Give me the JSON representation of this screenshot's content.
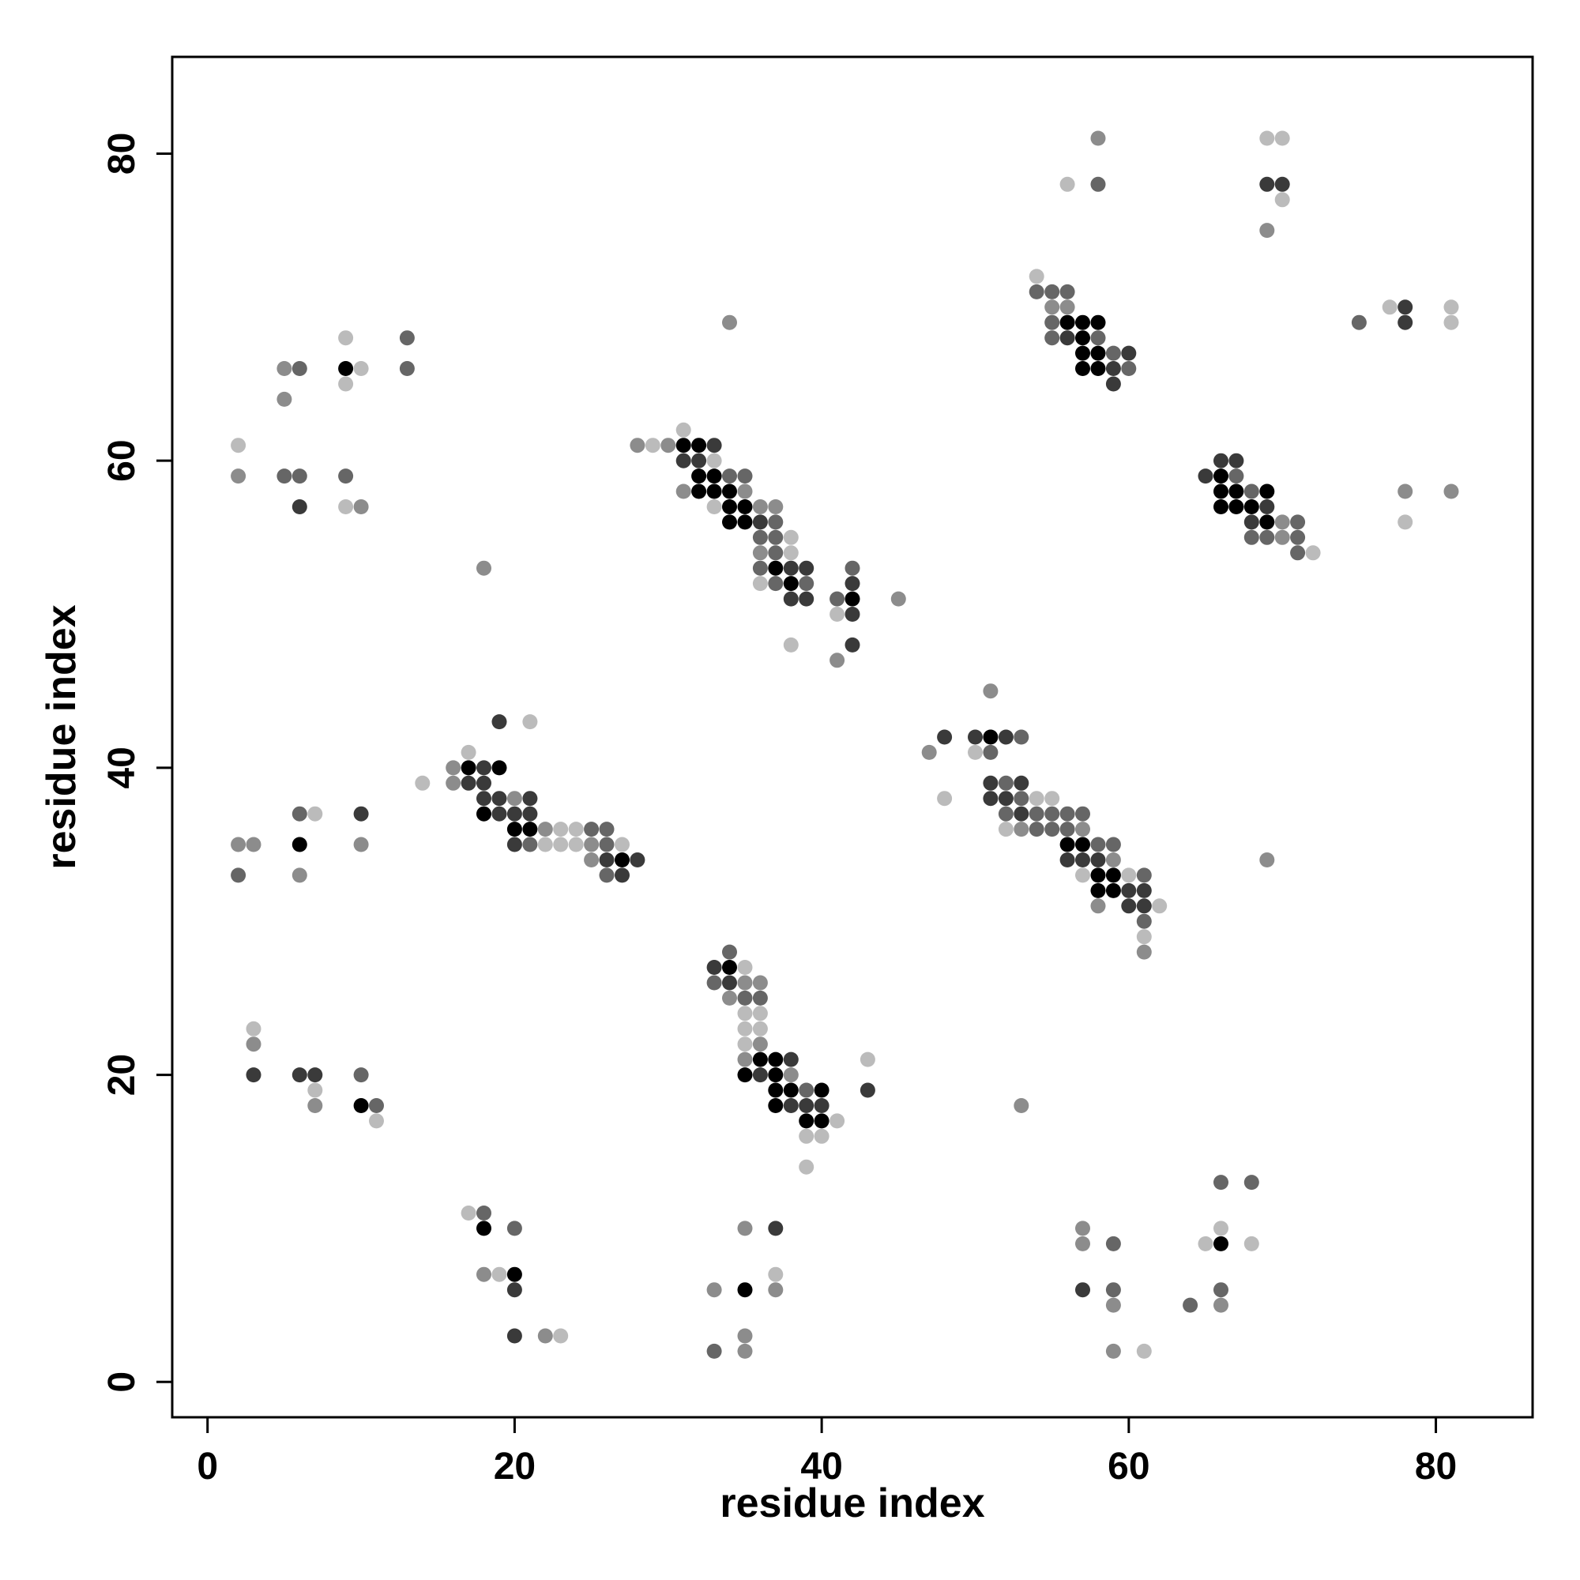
{
  "chart_data": {
    "type": "scatter",
    "title": "",
    "xlabel": "residue index",
    "ylabel": "residue index",
    "xlim": [
      -2.3,
      86.3
    ],
    "ylim": [
      -2.3,
      86.3
    ],
    "xticks": [
      0,
      20,
      40,
      60,
      80
    ],
    "yticks": [
      0,
      20,
      40,
      60,
      80
    ],
    "grid": false,
    "legend": "none",
    "shade_scale": {
      "1": "#bbbbbb",
      "2": "#8c8c8c",
      "3": "#666666",
      "4": "#3a3a3a",
      "5": "#000000"
    },
    "points": [
      [
        2,
        61,
        1
      ],
      [
        2,
        59,
        2
      ],
      [
        5,
        66,
        2
      ],
      [
        6,
        66,
        3
      ],
      [
        5,
        64,
        2
      ],
      [
        9,
        68,
        1
      ],
      [
        9,
        66,
        5
      ],
      [
        10,
        66,
        1
      ],
      [
        9,
        65,
        1
      ],
      [
        13,
        68,
        3
      ],
      [
        13,
        66,
        3
      ],
      [
        5,
        59,
        3
      ],
      [
        6,
        59,
        3
      ],
      [
        6,
        57,
        4
      ],
      [
        9,
        59,
        3
      ],
      [
        9,
        57,
        1
      ],
      [
        10,
        57,
        2
      ],
      [
        18,
        53,
        2
      ],
      [
        2,
        35,
        2
      ],
      [
        3,
        35,
        2
      ],
      [
        2,
        33,
        3
      ],
      [
        6,
        37,
        3
      ],
      [
        7,
        37,
        1
      ],
      [
        6,
        35,
        5
      ],
      [
        6,
        33,
        2
      ],
      [
        10,
        37,
        4
      ],
      [
        10,
        35,
        2
      ],
      [
        3,
        23,
        1
      ],
      [
        3,
        22,
        2
      ],
      [
        3,
        20,
        4
      ],
      [
        6,
        20,
        4
      ],
      [
        7,
        20,
        4
      ],
      [
        7,
        19,
        1
      ],
      [
        7,
        18,
        2
      ],
      [
        10,
        20,
        3
      ],
      [
        10,
        18,
        5
      ],
      [
        11,
        18,
        3
      ],
      [
        11,
        17,
        1
      ],
      [
        14,
        39,
        1
      ],
      [
        16,
        40,
        2
      ],
      [
        16,
        39,
        2
      ],
      [
        17,
        41,
        1
      ],
      [
        17,
        40,
        5
      ],
      [
        17,
        39,
        4
      ],
      [
        18,
        40,
        4
      ],
      [
        18,
        39,
        4
      ],
      [
        18,
        38,
        4
      ],
      [
        18,
        37,
        5
      ],
      [
        19,
        43,
        4
      ],
      [
        19,
        40,
        5
      ],
      [
        19,
        38,
        4
      ],
      [
        19,
        37,
        4
      ],
      [
        20,
        38,
        2
      ],
      [
        20,
        37,
        4
      ],
      [
        20,
        36,
        5
      ],
      [
        20,
        35,
        4
      ],
      [
        21,
        43,
        1
      ],
      [
        21,
        38,
        4
      ],
      [
        21,
        37,
        4
      ],
      [
        21,
        36,
        5
      ],
      [
        21,
        35,
        3
      ],
      [
        22,
        36,
        2
      ],
      [
        22,
        35,
        1
      ],
      [
        23,
        36,
        1
      ],
      [
        23,
        35,
        1
      ],
      [
        24,
        36,
        1
      ],
      [
        24,
        35,
        1
      ],
      [
        25,
        36,
        3
      ],
      [
        25,
        35,
        2
      ],
      [
        25,
        34,
        2
      ],
      [
        26,
        36,
        3
      ],
      [
        26,
        35,
        3
      ],
      [
        26,
        34,
        4
      ],
      [
        26,
        33,
        3
      ],
      [
        27,
        35,
        1
      ],
      [
        27,
        34,
        5
      ],
      [
        27,
        33,
        4
      ],
      [
        28,
        34,
        4
      ],
      [
        17,
        11,
        1
      ],
      [
        18,
        11,
        3
      ],
      [
        18,
        10,
        5
      ],
      [
        20,
        10,
        3
      ],
      [
        18,
        7,
        2
      ],
      [
        19,
        7,
        1
      ],
      [
        20,
        7,
        5
      ],
      [
        20,
        6,
        4
      ],
      [
        20,
        3,
        4
      ],
      [
        22,
        3,
        2
      ],
      [
        23,
        3,
        1
      ],
      [
        28,
        61,
        2
      ],
      [
        29,
        61,
        1
      ],
      [
        30,
        61,
        2
      ],
      [
        31,
        62,
        1
      ],
      [
        31,
        61,
        5
      ],
      [
        31,
        60,
        4
      ],
      [
        31,
        58,
        2
      ],
      [
        32,
        61,
        5
      ],
      [
        32,
        60,
        4
      ],
      [
        32,
        59,
        5
      ],
      [
        32,
        58,
        5
      ],
      [
        33,
        61,
        4
      ],
      [
        33,
        60,
        1
      ],
      [
        33,
        59,
        5
      ],
      [
        33,
        58,
        5
      ],
      [
        33,
        57,
        1
      ],
      [
        34,
        69,
        2
      ],
      [
        34,
        59,
        3
      ],
      [
        34,
        58,
        5
      ],
      [
        34,
        57,
        5
      ],
      [
        34,
        56,
        5
      ],
      [
        35,
        59,
        3
      ],
      [
        35,
        58,
        2
      ],
      [
        35,
        57,
        5
      ],
      [
        35,
        56,
        5
      ],
      [
        36,
        57,
        2
      ],
      [
        36,
        56,
        4
      ],
      [
        36,
        55,
        3
      ],
      [
        36,
        54,
        2
      ],
      [
        36,
        53,
        3
      ],
      [
        36,
        52,
        1
      ],
      [
        37,
        57,
        2
      ],
      [
        37,
        56,
        3
      ],
      [
        37,
        55,
        3
      ],
      [
        37,
        54,
        3
      ],
      [
        37,
        53,
        5
      ],
      [
        37,
        52,
        3
      ],
      [
        38,
        55,
        1
      ],
      [
        38,
        54,
        1
      ],
      [
        38,
        53,
        4
      ],
      [
        38,
        52,
        5
      ],
      [
        38,
        51,
        4
      ],
      [
        38,
        48,
        1
      ],
      [
        39,
        53,
        4
      ],
      [
        39,
        52,
        3
      ],
      [
        39,
        51,
        4
      ],
      [
        41,
        51,
        3
      ],
      [
        41,
        50,
        1
      ],
      [
        41,
        47,
        2
      ],
      [
        42,
        53,
        3
      ],
      [
        42,
        52,
        4
      ],
      [
        42,
        51,
        5
      ],
      [
        42,
        50,
        4
      ],
      [
        42,
        48,
        4
      ],
      [
        45,
        51,
        2
      ],
      [
        33,
        27,
        4
      ],
      [
        33,
        26,
        3
      ],
      [
        34,
        28,
        3
      ],
      [
        34,
        27,
        5
      ],
      [
        34,
        26,
        4
      ],
      [
        34,
        25,
        2
      ],
      [
        35,
        27,
        1
      ],
      [
        35,
        26,
        2
      ],
      [
        35,
        25,
        3
      ],
      [
        35,
        24,
        1
      ],
      [
        35,
        23,
        1
      ],
      [
        35,
        22,
        1
      ],
      [
        35,
        21,
        2
      ],
      [
        35,
        20,
        5
      ],
      [
        36,
        26,
        2
      ],
      [
        36,
        25,
        3
      ],
      [
        36,
        24,
        1
      ],
      [
        36,
        23,
        1
      ],
      [
        36,
        22,
        2
      ],
      [
        36,
        21,
        5
      ],
      [
        36,
        20,
        4
      ],
      [
        37,
        21,
        5
      ],
      [
        37,
        20,
        5
      ],
      [
        37,
        19,
        5
      ],
      [
        37,
        18,
        5
      ],
      [
        38,
        21,
        4
      ],
      [
        38,
        20,
        2
      ],
      [
        38,
        19,
        5
      ],
      [
        38,
        18,
        4
      ],
      [
        39,
        19,
        3
      ],
      [
        39,
        18,
        4
      ],
      [
        39,
        17,
        5
      ],
      [
        39,
        16,
        1
      ],
      [
        39,
        14,
        1
      ],
      [
        40,
        19,
        5
      ],
      [
        40,
        18,
        4
      ],
      [
        40,
        17,
        5
      ],
      [
        40,
        16,
        1
      ],
      [
        41,
        17,
        1
      ],
      [
        43,
        21,
        1
      ],
      [
        43,
        19,
        4
      ],
      [
        33,
        6,
        2
      ],
      [
        33,
        2,
        3
      ],
      [
        35,
        10,
        2
      ],
      [
        35,
        6,
        5
      ],
      [
        35,
        3,
        2
      ],
      [
        35,
        2,
        2
      ],
      [
        37,
        10,
        4
      ],
      [
        37,
        7,
        1
      ],
      [
        37,
        6,
        2
      ],
      [
        47,
        41,
        2
      ],
      [
        48,
        42,
        4
      ],
      [
        48,
        38,
        1
      ],
      [
        50,
        42,
        4
      ],
      [
        50,
        41,
        1
      ],
      [
        51,
        45,
        2
      ],
      [
        51,
        42,
        5
      ],
      [
        51,
        41,
        3
      ],
      [
        52,
        42,
        4
      ],
      [
        53,
        42,
        3
      ],
      [
        51,
        39,
        4
      ],
      [
        51,
        38,
        4
      ],
      [
        52,
        39,
        3
      ],
      [
        52,
        38,
        4
      ],
      [
        52,
        37,
        3
      ],
      [
        52,
        36,
        1
      ],
      [
        53,
        39,
        4
      ],
      [
        53,
        38,
        3
      ],
      [
        53,
        37,
        4
      ],
      [
        53,
        36,
        2
      ],
      [
        54,
        38,
        1
      ],
      [
        54,
        37,
        3
      ],
      [
        54,
        36,
        3
      ],
      [
        55,
        38,
        1
      ],
      [
        55,
        37,
        3
      ],
      [
        55,
        36,
        3
      ],
      [
        56,
        37,
        3
      ],
      [
        56,
        36,
        3
      ],
      [
        56,
        35,
        5
      ],
      [
        56,
        34,
        4
      ],
      [
        57,
        37,
        3
      ],
      [
        57,
        36,
        2
      ],
      [
        57,
        35,
        5
      ],
      [
        57,
        34,
        4
      ],
      [
        57,
        33,
        1
      ],
      [
        58,
        35,
        3
      ],
      [
        58,
        34,
        4
      ],
      [
        58,
        33,
        5
      ],
      [
        58,
        32,
        5
      ],
      [
        58,
        31,
        2
      ],
      [
        59,
        35,
        3
      ],
      [
        59,
        34,
        2
      ],
      [
        59,
        33,
        5
      ],
      [
        59,
        32,
        5
      ],
      [
        60,
        33,
        1
      ],
      [
        60,
        32,
        4
      ],
      [
        60,
        31,
        4
      ],
      [
        61,
        33,
        3
      ],
      [
        61,
        32,
        4
      ],
      [
        61,
        31,
        4
      ],
      [
        61,
        30,
        3
      ],
      [
        61,
        29,
        1
      ],
      [
        61,
        28,
        2
      ],
      [
        62,
        31,
        1
      ],
      [
        53,
        18,
        2
      ],
      [
        56,
        78,
        1
      ],
      [
        58,
        81,
        2
      ],
      [
        58,
        78,
        3
      ],
      [
        54,
        72,
        1
      ],
      [
        54,
        71,
        3
      ],
      [
        55,
        71,
        3
      ],
      [
        55,
        70,
        2
      ],
      [
        55,
        69,
        3
      ],
      [
        55,
        68,
        3
      ],
      [
        56,
        71,
        3
      ],
      [
        56,
        70,
        2
      ],
      [
        56,
        69,
        5
      ],
      [
        56,
        68,
        4
      ],
      [
        57,
        69,
        5
      ],
      [
        57,
        68,
        5
      ],
      [
        57,
        67,
        5
      ],
      [
        57,
        66,
        5
      ],
      [
        58,
        69,
        5
      ],
      [
        58,
        68,
        3
      ],
      [
        58,
        67,
        5
      ],
      [
        58,
        66,
        5
      ],
      [
        59,
        67,
        3
      ],
      [
        59,
        66,
        4
      ],
      [
        59,
        65,
        4
      ],
      [
        60,
        67,
        4
      ],
      [
        60,
        66,
        3
      ],
      [
        69,
        81,
        1
      ],
      [
        70,
        81,
        1
      ],
      [
        69,
        78,
        4
      ],
      [
        70,
        78,
        4
      ],
      [
        70,
        77,
        1
      ],
      [
        69,
        75,
        2
      ],
      [
        75,
        69,
        3
      ],
      [
        77,
        70,
        1
      ],
      [
        78,
        70,
        4
      ],
      [
        78,
        69,
        4
      ],
      [
        81,
        70,
        1
      ],
      [
        81,
        69,
        1
      ],
      [
        65,
        59,
        4
      ],
      [
        66,
        60,
        4
      ],
      [
        66,
        59,
        5
      ],
      [
        66,
        58,
        5
      ],
      [
        66,
        57,
        5
      ],
      [
        67,
        60,
        4
      ],
      [
        67,
        59,
        3
      ],
      [
        67,
        58,
        5
      ],
      [
        67,
        57,
        5
      ],
      [
        68,
        58,
        3
      ],
      [
        68,
        57,
        5
      ],
      [
        68,
        56,
        4
      ],
      [
        68,
        55,
        3
      ],
      [
        69,
        58,
        5
      ],
      [
        69,
        57,
        4
      ],
      [
        69,
        56,
        5
      ],
      [
        69,
        55,
        3
      ],
      [
        70,
        56,
        2
      ],
      [
        70,
        55,
        2
      ],
      [
        71,
        56,
        3
      ],
      [
        71,
        55,
        3
      ],
      [
        71,
        54,
        3
      ],
      [
        72,
        54,
        1
      ],
      [
        78,
        58,
        2
      ],
      [
        78,
        56,
        1
      ],
      [
        81,
        58,
        2
      ],
      [
        69,
        34,
        2
      ],
      [
        57,
        10,
        2
      ],
      [
        57,
        9,
        2
      ],
      [
        57,
        6,
        4
      ],
      [
        59,
        9,
        3
      ],
      [
        59,
        6,
        3
      ],
      [
        59,
        5,
        2
      ],
      [
        59,
        2,
        2
      ],
      [
        61,
        2,
        1
      ],
      [
        64,
        5,
        3
      ],
      [
        65,
        9,
        1
      ],
      [
        66,
        13,
        3
      ],
      [
        66,
        10,
        1
      ],
      [
        66,
        9,
        5
      ],
      [
        66,
        6,
        3
      ],
      [
        66,
        5,
        2
      ],
      [
        68,
        13,
        3
      ],
      [
        68,
        9,
        1
      ]
    ]
  }
}
